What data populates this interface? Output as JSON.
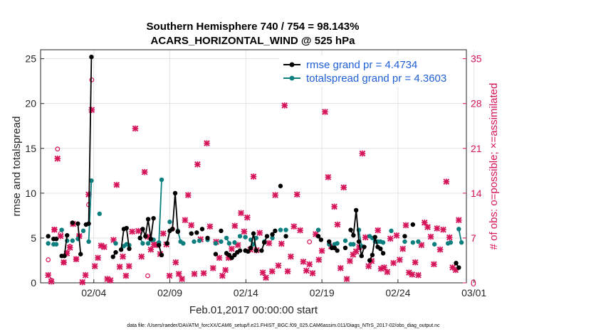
{
  "chart_data": {
    "type": "line",
    "title": "Southern Hemisphere 740 / 754 = 98.143%",
    "subtitle": "ACARS_HORIZONTAL_WIND @ 525 hPa",
    "xlabel": "Feb.01,2017 00:00:00 start",
    "ylabel": "rmse and totalspread",
    "ylabel_right": "# of obs: o=possible; ×=assimilated",
    "footer": "data file: /Users/raeder/DAI/ATM_forcXX/CAM6_setup/f.e21.FHIST_BGC.f09_025.CAM6assim.011/Diags_NTrS_2017-02/obs_diag_output.nc",
    "xlim": [
      0.5,
      28.5
    ],
    "ylim": [
      0,
      26
    ],
    "ylim_right": [
      0,
      36.4
    ],
    "x_ticks": [
      4,
      9,
      14,
      19,
      24,
      29
    ],
    "x_tick_labels": [
      "02/04",
      "02/09",
      "02/14",
      "02/19",
      "02/24",
      "03/01"
    ],
    "y_ticks": [
      0,
      5,
      10,
      15,
      20,
      25
    ],
    "y_tick_labels": [
      "0",
      "5",
      "10",
      "15",
      "20",
      "25"
    ],
    "y_ticks_right": [
      0,
      7,
      14,
      21,
      28,
      35
    ],
    "y_tick_labels_right": [
      "0",
      "7",
      "14",
      "21",
      "28",
      "35"
    ],
    "grid": true,
    "legend_position": "top-right",
    "colors": {
      "rmse": "#000000",
      "spread": "#0d7f7f",
      "obs": "#d6145a",
      "legend_text": "#1f5fd6"
    },
    "series": [
      {
        "name": "rmse grand pr = 4.4734",
        "color": "#000000",
        "values": [
          [
            5.2,
            null,
            4.9,
            4.9,
            null,
            3.0,
            3.0,
            5.3,
            null,
            6.7,
            null,
            6.6,
            3.2,
            null,
            6.5,
            6.6,
            25.2,
            null,
            null,
            null,
            null,
            null,
            null,
            null,
            2.9,
            3.4,
            null,
            3.7,
            6.0,
            6.1,
            3.8,
            null,
            null,
            null,
            5.0,
            6.0,
            5.2,
            7.1,
            4.9,
            7.2,
            null,
            4.2,
            3.1,
            null,
            4.4,
            5.8,
            6.0,
            10.0,
            5.7,
            null,
            null,
            null,
            null,
            5.5,
            null,
            5.6,
            null,
            6.0,
            null,
            5.0,
            null,
            null,
            3.2,
            null,
            5.8,
            null,
            3.3,
            3.1,
            2.8,
            3.1,
            3.4,
            3.6,
            null,
            3.6,
            3.5,
            3.9,
            5.5,
            3.6,
            null,
            3.6,
            4.5,
            5.2,
            null,
            5.4,
            5.8,
            null,
            10.8,
            null,
            5.2,
            null,
            null,
            null,
            null,
            null,
            null,
            null,
            null,
            null,
            null,
            null,
            5.2,
            4.8,
            null,
            null,
            4.6,
            3.9,
            3.9,
            3.6,
            null,
            null,
            3.9,
            null,
            5.9,
            5.3,
            8.1,
            4.6,
            3.0,
            4.0,
            null,
            2.5,
            3.1,
            5.1,
            4.0,
            3.8,
            3.3,
            null,
            null,
            null,
            null,
            null,
            null,
            null,
            5.2,
            null,
            null,
            6.5,
            null,
            null,
            null,
            null,
            null,
            null,
            null,
            null,
            null,
            null,
            null,
            null,
            null,
            null,
            null,
            2.2,
            1.7
          ]
        ]
      },
      {
        "name": "totalspread grand pr = 4.3603",
        "color": "#0d7f7f",
        "values": [
          [
            4.4,
            null,
            4.3,
            4.3,
            null,
            5.9,
            null,
            4.7,
            null,
            4.7,
            null,
            4.9,
            null,
            5.8,
            null,
            4.6,
            11.4,
            null,
            null,
            7.7,
            null,
            null,
            null,
            null,
            null,
            4.4,
            null,
            null,
            4.1,
            4.3,
            4.2,
            null,
            null,
            null,
            5.0,
            4.4,
            null,
            4.4,
            4.8,
            4.8,
            null,
            4.5,
            11.5,
            null,
            null,
            6.8,
            null,
            null,
            5.8,
            4.6,
            4.4,
            null,
            null,
            null,
            4.6,
            null,
            4.7,
            null,
            null,
            4.8,
            null,
            null,
            4.4,
            null,
            4.6,
            null,
            5.0,
            4.4,
            null,
            4.5,
            null,
            5.2,
            null,
            5.1,
            null,
            4.8,
            4.3,
            5.0,
            null,
            null,
            4.6,
            null,
            null,
            5.0,
            null,
            null,
            5.9,
            null,
            5.9,
            null,
            null,
            null,
            null,
            null,
            null,
            null,
            null,
            null,
            null,
            null,
            5.9,
            null,
            null,
            null,
            4.3,
            null,
            4.3,
            4.4,
            null,
            null,
            4.7,
            null,
            4.3,
            4.3,
            null,
            5.9,
            4.1,
            null,
            null,
            5.2,
            5.0,
            4.6,
            4.6,
            4.6,
            4.5,
            null,
            null,
            5.8,
            null,
            null,
            null,
            null,
            4.6,
            null,
            null,
            4.5,
            null,
            4.6,
            null,
            null,
            null,
            null,
            null,
            4.3,
            null,
            null,
            null,
            null,
            4.4,
            4.5,
            null,
            null,
            6.0,
            4.5
          ]
        ]
      }
    ],
    "obs_possible": [
      3.6,
      0.4,
      8.3,
      20.9,
      7.7,
      3.2,
      4.7,
      5.7,
      9.2,
      3.7,
      7.3,
      null,
      null,
      12.2,
      31.7,
      null,
      null,
      null,
      null,
      null,
      null,
      null,
      null,
      null,
      null,
      null,
      null,
      null,
      null,
      null,
      null,
      null,
      1.1,
      null,
      null,
      null,
      null,
      null,
      null,
      null,
      8.4,
      null,
      null,
      null,
      null,
      null,
      null,
      null,
      null,
      null,
      null,
      null,
      null,
      null,
      null,
      null,
      null,
      null,
      null,
      null,
      null,
      null,
      null,
      null,
      null,
      null,
      null,
      null,
      null,
      null,
      null,
      null,
      null,
      null,
      null,
      null,
      null,
      null,
      null,
      null,
      null,
      null,
      null,
      null,
      6.4,
      null,
      null,
      null,
      null,
      null,
      null,
      null,
      null,
      null,
      null,
      null,
      null,
      null,
      null,
      null,
      null,
      null,
      null,
      null,
      null,
      null,
      null,
      null,
      null,
      null,
      null,
      null,
      null,
      null,
      null,
      null,
      null,
      null,
      null,
      null,
      null,
      null,
      null,
      null,
      null,
      null,
      null,
      null,
      null,
      null,
      null,
      null,
      null,
      null,
      null,
      null,
      null,
      null,
      null,
      null,
      null,
      null,
      null,
      null,
      null,
      null,
      null,
      null,
      null,
      null,
      null,
      null,
      null,
      null,
      null
    ],
    "obs_assimilated": [
      1.2,
      0.2,
      8.3,
      19.4,
      7.3,
      3.2,
      4.6,
      5.5,
      9.2,
      3.7,
      7.3,
      0.1,
      1.2,
      13.8,
      27.0,
      2.6,
      3.9,
      5.8,
      5.6,
      0.6,
      0.4,
      6.7,
      15.3,
      2.5,
      4.1,
      1.1,
      2.6,
      8.0,
      24.1,
      8.1,
      4.1,
      17.3,
      7.2,
      5.2,
      6.0,
      5.9,
      4.5,
      7.7,
      6.0,
      1.1,
      null,
      3.2,
      1.4,
      0.6,
      9.8,
      13.7,
      9.0,
      1.4,
      18.5,
      6.8,
      1.5,
      21.8,
      8.8,
      2.3,
      6.4,
      3.9,
      1.1,
      2.0,
      3.9,
      5.3,
      8.9,
      5.9,
      10.9,
      8.0,
      10.2,
      5.2,
      16.6,
      5.1,
      7.8,
      1.6,
      0.8,
      6.2,
      1.8,
      13.7,
      2.7,
      6.1,
      27.7,
      1.8,
      4.1,
      8.8,
      13.8,
      8.2,
      3.3,
      1.9,
      2.9,
      1.5,
      7.6,
      3.6,
      5.0,
      26.7,
      16.5,
      5.7,
      11.9,
      9.1,
      2.3,
      14.9,
      0.6,
      3.4,
      4.4,
      4.9,
      5.6,
      20.2,
      7.1,
      2.6,
      3.4,
      null,
      8.2,
      2.2,
      2.4,
      1.7,
      6.9,
      3.1,
      7.4,
      3.6,
      5.3,
      9.0,
      1.6,
      1.3,
      3.2,
      1.2,
      5.9,
      9.4,
      8.7,
      7.2,
      2.9,
      8.5,
      5.2,
      8.3,
      15.8,
      7.1,
      2.4,
      2.0,
      9.8
    ]
  }
}
